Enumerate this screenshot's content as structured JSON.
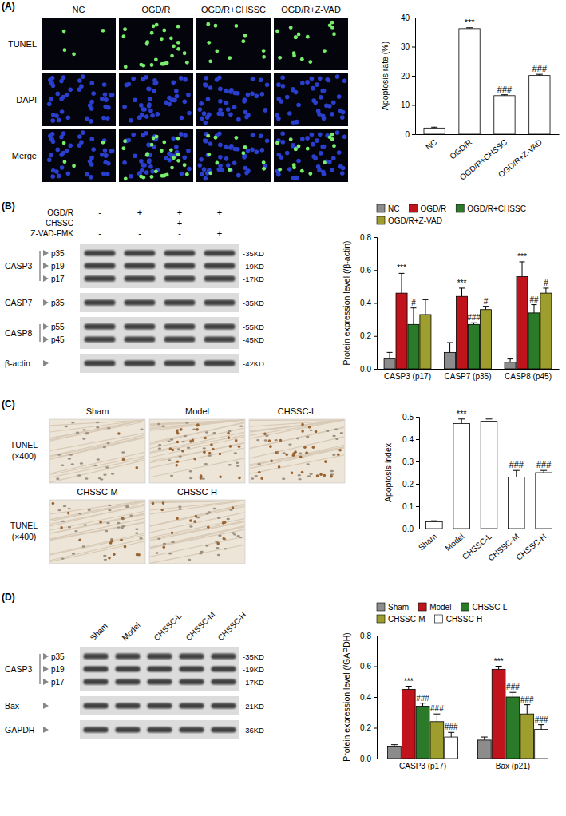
{
  "figure": {
    "A": {
      "letter": "(A)",
      "row_labels": [
        "TUNEL",
        "DAPI",
        "Merge"
      ],
      "column_labels": [
        "NC",
        "OGD/R",
        "OGD/R+CHSSC",
        "OGD/R+Z-VAD"
      ]
    },
    "B": {
      "letter": "(B)",
      "conditions": [
        {
          "label": "OGD/R",
          "signs": [
            "-",
            "+",
            "+",
            "+"
          ]
        },
        {
          "label": "CHSSC",
          "signs": [
            "-",
            "-",
            "+",
            "-"
          ]
        },
        {
          "label": "Z-VAD-FMK",
          "signs": [
            "-",
            "-",
            "-",
            "+"
          ]
        }
      ],
      "blot": [
        {
          "name": "CASP3",
          "bands": [
            {
              "form": "p35",
              "kd": "-35KD"
            },
            {
              "form": "p19",
              "kd": "-19KD"
            },
            {
              "form": "p17",
              "kd": "-17KD"
            }
          ]
        },
        {
          "name": "CASP7",
          "bands": [
            {
              "form": "p35",
              "kd": "-35KD"
            }
          ]
        },
        {
          "name": "CASP8",
          "bands": [
            {
              "form": "p55",
              "kd": "-55KD"
            },
            {
              "form": "p45",
              "kd": "-45KD"
            }
          ]
        },
        {
          "name": "β-actin",
          "bands": [
            {
              "kd": "-42KD"
            }
          ]
        }
      ]
    },
    "C": {
      "letter": "(C)",
      "rows": [
        {
          "label": "TUNEL",
          "magnification": "(×400)",
          "columns": [
            "Sham",
            "Model",
            "CHSSC-L"
          ]
        },
        {
          "label": "TUNEL",
          "magnification": "(×400)",
          "columns": [
            "CHSSC-M",
            "CHSSC-H"
          ]
        }
      ]
    },
    "D": {
      "letter": "(D)",
      "lanes": [
        "Sham",
        "Model",
        "CHSSC-L",
        "CHSSC-M",
        "CHSSC-H"
      ],
      "blot": [
        {
          "name": "CASP3",
          "bands": [
            {
              "form": "p35",
              "kd": "-35KD"
            },
            {
              "form": "p19",
              "kd": "-19KD"
            },
            {
              "form": "p17",
              "kd": "-17KD"
            }
          ]
        },
        {
          "name": "Bax",
          "bands": [
            {
              "kd": "-21KD"
            }
          ]
        },
        {
          "name": "GAPDH",
          "bands": [
            {
              "kd": "-36KD"
            }
          ]
        }
      ]
    }
  },
  "chart_data": [
    {
      "type": "bar",
      "categories": [
        "NC",
        "OGD/R",
        "OGD/R+CHSSC",
        "OGD/R+Z-VAD"
      ],
      "values": [
        2.1,
        36.2,
        13.2,
        20.1
      ],
      "errors": [
        0.3,
        0.3,
        0.3,
        0.4
      ],
      "annotations": [
        null,
        "***",
        "###",
        "###"
      ],
      "color": "#ffffff",
      "y_label": "Apoptosis rate (%)",
      "ylim": [
        0,
        40
      ],
      "yticks": [
        0,
        10,
        20,
        30,
        40
      ]
    },
    {
      "type": "bar",
      "categories": [
        "CASP3 (p17)",
        "CASP7 (p35)",
        "CASP8 (p45)"
      ],
      "series": [
        {
          "name": "NC",
          "color": "#8c8c8c",
          "values": [
            0.06,
            0.1,
            0.04
          ],
          "errors": [
            0.04,
            0.06,
            0.02
          ]
        },
        {
          "name": "OGD/R",
          "color": "#c0131b",
          "values": [
            0.46,
            0.44,
            0.56
          ],
          "errors": [
            0.12,
            0.05,
            0.09
          ],
          "annotations": [
            "***",
            "***",
            "***"
          ]
        },
        {
          "name": "OGD/R+CHSSC",
          "color": "#2a7a2a",
          "values": [
            0.27,
            0.27,
            0.34
          ],
          "errors": [
            0.1,
            0.01,
            0.05
          ],
          "annotations": [
            "#",
            "###",
            "##"
          ]
        },
        {
          "name": "OGD/R+Z-VAD",
          "color": "#9e9e2e",
          "values": [
            0.33,
            0.36,
            0.46
          ],
          "errors": [
            0.09,
            0.02,
            0.03
          ],
          "annotations": [
            null,
            "#",
            "#"
          ]
        }
      ],
      "y_label": "Protein expression level (/β-actin)",
      "ylim": [
        0,
        0.8
      ],
      "yticks": [
        {
          "value": 0,
          "label": "0.0"
        },
        0.2,
        0.4,
        0.6,
        0.8
      ],
      "legend": "top"
    },
    {
      "type": "bar",
      "categories": [
        "Sham",
        "Model",
        "CHSSC-L",
        "CHSSC-M",
        "CHSSC-H"
      ],
      "values": [
        0.03,
        0.47,
        0.48,
        0.23,
        0.25
      ],
      "errors": [
        0.005,
        0.02,
        0.01,
        0.03,
        0.01
      ],
      "annotations": [
        null,
        "***",
        null,
        "###",
        "###"
      ],
      "color": "#ffffff",
      "y_label": "Apoptosis index",
      "ylim": [
        0,
        0.5
      ],
      "yticks": [
        {
          "value": 0,
          "label": "0.0"
        },
        0.1,
        0.2,
        0.3,
        0.4,
        0.5
      ]
    },
    {
      "type": "bar",
      "categories": [
        "CASP3 (p17)",
        "Bax (p21)"
      ],
      "series": [
        {
          "name": "Sham",
          "color": "#8c8c8c",
          "values": [
            0.08,
            0.12
          ],
          "errors": [
            0.01,
            0.02
          ]
        },
        {
          "name": "Model",
          "color": "#c0131b",
          "values": [
            0.45,
            0.58
          ],
          "errors": [
            0.02,
            0.02
          ],
          "annotations": [
            "***",
            "***"
          ]
        },
        {
          "name": "CHSSC-L",
          "color": "#2a7a2a",
          "values": [
            0.34,
            0.4
          ],
          "errors": [
            0.02,
            0.03
          ],
          "annotations": [
            "###",
            "###"
          ]
        },
        {
          "name": "CHSSC-M",
          "color": "#9e9e2e",
          "values": [
            0.24,
            0.29
          ],
          "errors": [
            0.05,
            0.06
          ],
          "annotations": [
            "###",
            "###"
          ]
        },
        {
          "name": "CHSSC-H",
          "color": "#ffffff",
          "values": [
            0.14,
            0.19
          ],
          "errors": [
            0.03,
            0.03
          ],
          "annotations": [
            "###",
            "###"
          ]
        }
      ],
      "y_label": "Protein expression level (/GAPDH)",
      "ylim": [
        0,
        0.8
      ],
      "yticks": [
        {
          "value": 0,
          "label": "0.0"
        },
        0.2,
        0.4,
        0.6,
        0.8
      ],
      "legend": "top"
    }
  ]
}
